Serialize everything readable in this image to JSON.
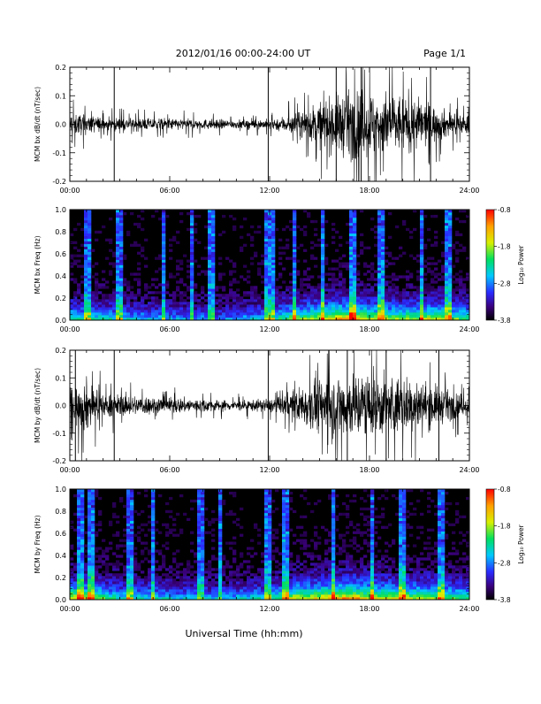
{
  "header": {
    "title": "2012/01/16  00:00-24:00 UT",
    "page": "Page 1/1"
  },
  "footer": {
    "xlabel": "Universal Time (hh:mm)"
  },
  "chart_data": [
    {
      "type": "line",
      "ylabel": "MCM bx dB/dt (nT/sec)",
      "xlim": [
        "00:00",
        "24:00"
      ],
      "ylim": [
        -0.2,
        0.2
      ],
      "xticks": [
        "00:00",
        "06:00",
        "12:00",
        "18:00",
        "24:00"
      ],
      "yticks": [
        "-0.2",
        "-0.1",
        "0.0",
        "0.1",
        "0.2"
      ],
      "envelope": {
        "x": [
          "00:00",
          "02:00",
          "04:00",
          "06:00",
          "08:00",
          "10:00",
          "12:00",
          "13:00",
          "14:00",
          "15:00",
          "16:00",
          "17:00",
          "18:00",
          "19:00",
          "20:00",
          "21:00",
          "22:00",
          "23:00",
          "24:00"
        ],
        "amplitude": [
          0.07,
          0.04,
          0.035,
          0.035,
          0.03,
          0.025,
          0.03,
          0.05,
          0.08,
          0.13,
          0.17,
          0.2,
          0.2,
          0.18,
          0.17,
          0.15,
          0.1,
          0.07,
          0.05
        ]
      },
      "spikes": [
        "02:40",
        "11:55",
        "16:00",
        "17:30",
        "21:40"
      ],
      "series_color": "#000000"
    },
    {
      "type": "heatmap",
      "ylabel": "MCM bx Freq (Hz)",
      "xlim": [
        "00:00",
        "24:00"
      ],
      "ylim": [
        0.0,
        1.0
      ],
      "xticks": [
        "00:00",
        "06:00",
        "12:00",
        "18:00",
        "24:00"
      ],
      "yticks": [
        "0.0",
        "0.2",
        "0.4",
        "0.6",
        "0.8",
        "1.0"
      ],
      "colorbar": {
        "label": "Log₁₀ Power",
        "ticks": [
          "-0.8",
          "-1.8",
          "-2.8",
          "-3.8"
        ],
        "range": [
          -3.8,
          -0.8
        ]
      },
      "power_profile": {
        "x": [
          "00:00",
          "03:00",
          "06:00",
          "09:00",
          "12:00",
          "13:30",
          "15:00",
          "16:00",
          "17:00",
          "18:00",
          "20:00",
          "22:00",
          "24:00"
        ],
        "level": [
          0.5,
          0.4,
          0.35,
          0.3,
          0.4,
          0.6,
          0.65,
          0.75,
          0.8,
          0.65,
          0.6,
          0.65,
          0.5
        ]
      },
      "vertical_streaks": [
        "01:00",
        "03:00",
        "05:40",
        "07:20",
        "08:30",
        "11:55",
        "12:10",
        "13:30",
        "15:10",
        "17:00",
        "18:40",
        "21:10",
        "22:40"
      ]
    },
    {
      "type": "line",
      "ylabel": "MCM by dB/dt (nT/sec)",
      "xlim": [
        "00:00",
        "24:00"
      ],
      "ylim": [
        -0.2,
        0.2
      ],
      "xticks": [
        "00:00",
        "06:00",
        "12:00",
        "18:00",
        "24:00"
      ],
      "yticks": [
        "-0.2",
        "-0.1",
        "0.0",
        "0.1",
        "0.2"
      ],
      "envelope": {
        "x": [
          "00:00",
          "01:00",
          "02:00",
          "04:00",
          "06:00",
          "08:00",
          "10:00",
          "12:00",
          "13:00",
          "14:00",
          "15:00",
          "16:00",
          "17:00",
          "18:00",
          "19:00",
          "20:00",
          "21:00",
          "22:00",
          "23:00",
          "24:00"
        ],
        "amplitude": [
          0.1,
          0.16,
          0.07,
          0.06,
          0.05,
          0.04,
          0.03,
          0.04,
          0.07,
          0.12,
          0.17,
          0.2,
          0.2,
          0.2,
          0.18,
          0.17,
          0.15,
          0.12,
          0.08,
          0.06
        ]
      },
      "spikes": [
        "00:20",
        "02:40",
        "11:55",
        "16:40",
        "19:00",
        "22:10"
      ],
      "series_color": "#000000"
    },
    {
      "type": "heatmap",
      "ylabel": "MCM by Freq (Hz)",
      "xlim": [
        "00:00",
        "24:00"
      ],
      "ylim": [
        0.0,
        1.0
      ],
      "xticks": [
        "00:00",
        "06:00",
        "12:00",
        "18:00",
        "24:00"
      ],
      "yticks": [
        "0.0",
        "0.2",
        "0.4",
        "0.6",
        "0.8",
        "1.0"
      ],
      "colorbar": {
        "label": "Log₁₀ Power",
        "ticks": [
          "-0.8",
          "-1.8",
          "-2.8",
          "-3.8"
        ],
        "range": [
          -3.8,
          -0.8
        ]
      },
      "power_profile": {
        "x": [
          "00:00",
          "01:00",
          "03:00",
          "06:00",
          "09:00",
          "12:00",
          "13:30",
          "15:00",
          "16:00",
          "17:00",
          "18:00",
          "20:00",
          "22:00",
          "24:00"
        ],
        "level": [
          0.7,
          0.65,
          0.45,
          0.4,
          0.35,
          0.45,
          0.65,
          0.7,
          0.75,
          0.8,
          0.7,
          0.65,
          0.6,
          0.5
        ]
      },
      "vertical_streaks": [
        "00:40",
        "01:20",
        "03:40",
        "05:00",
        "07:50",
        "09:00",
        "11:55",
        "13:00",
        "15:50",
        "18:10",
        "20:00",
        "22:10",
        "22:20"
      ]
    }
  ]
}
